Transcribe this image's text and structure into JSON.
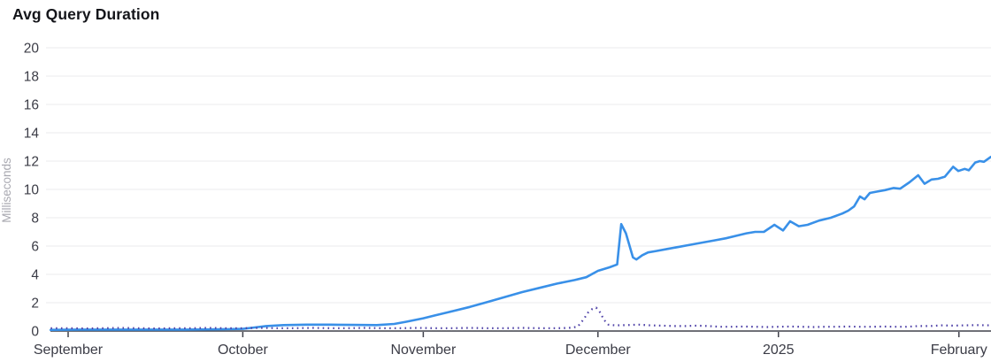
{
  "title": "Avg Query Duration",
  "chart_data": {
    "type": "line",
    "title": "Avg Query Duration",
    "xlabel": "",
    "ylabel": "Milliseconds",
    "ylim": [
      0,
      20
    ],
    "y_ticks": [
      0,
      2,
      4,
      6,
      8,
      10,
      12,
      14,
      16,
      18,
      20
    ],
    "x_unit": "days since September 1",
    "x_domain": [
      -3,
      158.5
    ],
    "x_ticks": [
      {
        "label": "September",
        "day": 0
      },
      {
        "label": "October",
        "day": 30
      },
      {
        "label": "November",
        "day": 61
      },
      {
        "label": "December",
        "day": 91
      },
      {
        "label": "2025",
        "day": 122
      },
      {
        "label": "February",
        "day": 153
      }
    ],
    "grid": "horizontal",
    "legend": "none",
    "series": [
      {
        "name": "avg-query-duration-solid-blue",
        "style": "solid",
        "color": "#3990e8",
        "points": [
          [
            -3,
            0.08
          ],
          [
            2,
            0.1
          ],
          [
            8,
            0.1
          ],
          [
            14,
            0.1
          ],
          [
            20,
            0.1
          ],
          [
            26,
            0.12
          ],
          [
            30,
            0.15
          ],
          [
            32,
            0.25
          ],
          [
            34,
            0.35
          ],
          [
            37,
            0.42
          ],
          [
            41,
            0.45
          ],
          [
            45,
            0.45
          ],
          [
            49,
            0.43
          ],
          [
            53,
            0.42
          ],
          [
            56,
            0.5
          ],
          [
            58,
            0.65
          ],
          [
            61,
            0.9
          ],
          [
            63,
            1.1
          ],
          [
            66,
            1.4
          ],
          [
            69,
            1.7
          ],
          [
            72,
            2.05
          ],
          [
            75,
            2.4
          ],
          [
            78,
            2.75
          ],
          [
            81,
            3.05
          ],
          [
            84,
            3.35
          ],
          [
            87,
            3.6
          ],
          [
            89,
            3.8
          ],
          [
            91,
            4.25
          ],
          [
            93,
            4.5
          ],
          [
            94.3,
            4.7
          ],
          [
            95,
            7.55
          ],
          [
            95.8,
            6.9
          ],
          [
            97,
            5.2
          ],
          [
            97.6,
            5.05
          ],
          [
            98.6,
            5.35
          ],
          [
            99.6,
            5.55
          ],
          [
            101,
            5.65
          ],
          [
            103,
            5.8
          ],
          [
            105,
            5.95
          ],
          [
            107,
            6.1
          ],
          [
            109,
            6.25
          ],
          [
            111,
            6.4
          ],
          [
            113,
            6.55
          ],
          [
            115,
            6.75
          ],
          [
            116.5,
            6.9
          ],
          [
            118,
            7.0
          ],
          [
            119.5,
            7.0
          ],
          [
            121.3,
            7.5
          ],
          [
            122.8,
            7.1
          ],
          [
            124,
            7.75
          ],
          [
            125.5,
            7.4
          ],
          [
            127,
            7.5
          ],
          [
            129,
            7.8
          ],
          [
            131,
            8.0
          ],
          [
            133,
            8.3
          ],
          [
            134,
            8.5
          ],
          [
            135,
            8.8
          ],
          [
            136,
            9.5
          ],
          [
            136.8,
            9.3
          ],
          [
            137.7,
            9.75
          ],
          [
            139,
            9.85
          ],
          [
            140.3,
            9.95
          ],
          [
            141.8,
            10.1
          ],
          [
            142.9,
            10.05
          ],
          [
            144.5,
            10.5
          ],
          [
            146,
            11.0
          ],
          [
            147.1,
            10.4
          ],
          [
            148.3,
            10.7
          ],
          [
            149.4,
            10.75
          ],
          [
            150.6,
            10.9
          ],
          [
            152,
            11.6
          ],
          [
            152.9,
            11.3
          ],
          [
            154,
            11.45
          ],
          [
            154.7,
            11.35
          ],
          [
            155.8,
            11.9
          ],
          [
            156.6,
            12.0
          ],
          [
            157.3,
            11.95
          ],
          [
            158.5,
            12.3
          ]
        ]
      },
      {
        "name": "baseline-dotted-purple",
        "style": "dotted",
        "color": "#4f42a8",
        "points": [
          [
            -3,
            0.2
          ],
          [
            0,
            0.2
          ],
          [
            3,
            0.18
          ],
          [
            6,
            0.2
          ],
          [
            9,
            0.22
          ],
          [
            12,
            0.2
          ],
          [
            15,
            0.18
          ],
          [
            18,
            0.2
          ],
          [
            21,
            0.2
          ],
          [
            24,
            0.22
          ],
          [
            27,
            0.2
          ],
          [
            30,
            0.2
          ],
          [
            33,
            0.22
          ],
          [
            36,
            0.2
          ],
          [
            39,
            0.2
          ],
          [
            42,
            0.22
          ],
          [
            45,
            0.2
          ],
          [
            48,
            0.2
          ],
          [
            51,
            0.22
          ],
          [
            54,
            0.2
          ],
          [
            57,
            0.2
          ],
          [
            60,
            0.22
          ],
          [
            63,
            0.2
          ],
          [
            66,
            0.2
          ],
          [
            69,
            0.22
          ],
          [
            72,
            0.2
          ],
          [
            75,
            0.2
          ],
          [
            78,
            0.22
          ],
          [
            81,
            0.2
          ],
          [
            84,
            0.2
          ],
          [
            86,
            0.22
          ],
          [
            87.5,
            0.3
          ],
          [
            88.5,
            0.8
          ],
          [
            89.3,
            1.3
          ],
          [
            90,
            1.55
          ],
          [
            90.7,
            1.65
          ],
          [
            91.4,
            1.3
          ],
          [
            92,
            0.8
          ],
          [
            92.8,
            0.45
          ],
          [
            94,
            0.4
          ],
          [
            96,
            0.42
          ],
          [
            98,
            0.45
          ],
          [
            100,
            0.4
          ],
          [
            102,
            0.38
          ],
          [
            104,
            0.35
          ],
          [
            106,
            0.35
          ],
          [
            108,
            0.38
          ],
          [
            110,
            0.35
          ],
          [
            112,
            0.3
          ],
          [
            114,
            0.3
          ],
          [
            116,
            0.32
          ],
          [
            118,
            0.3
          ],
          [
            120,
            0.28
          ],
          [
            122,
            0.3
          ],
          [
            124,
            0.32
          ],
          [
            126,
            0.3
          ],
          [
            128,
            0.28
          ],
          [
            130,
            0.3
          ],
          [
            132,
            0.3
          ],
          [
            134,
            0.32
          ],
          [
            136,
            0.3
          ],
          [
            138,
            0.3
          ],
          [
            140,
            0.32
          ],
          [
            142,
            0.3
          ],
          [
            144,
            0.3
          ],
          [
            146,
            0.35
          ],
          [
            148,
            0.35
          ],
          [
            150,
            0.4
          ],
          [
            152,
            0.38
          ],
          [
            154,
            0.4
          ],
          [
            156,
            0.42
          ],
          [
            158.5,
            0.4
          ]
        ]
      }
    ]
  },
  "colors": {
    "background": "#ffffff",
    "grid": "#ebebee",
    "axis": "#41424c",
    "tick_label": "#3b3c46",
    "axis_label": "#a8a8b0",
    "title": "#14151a",
    "series_blue": "#3990e8",
    "series_purple": "#4f42a8"
  }
}
